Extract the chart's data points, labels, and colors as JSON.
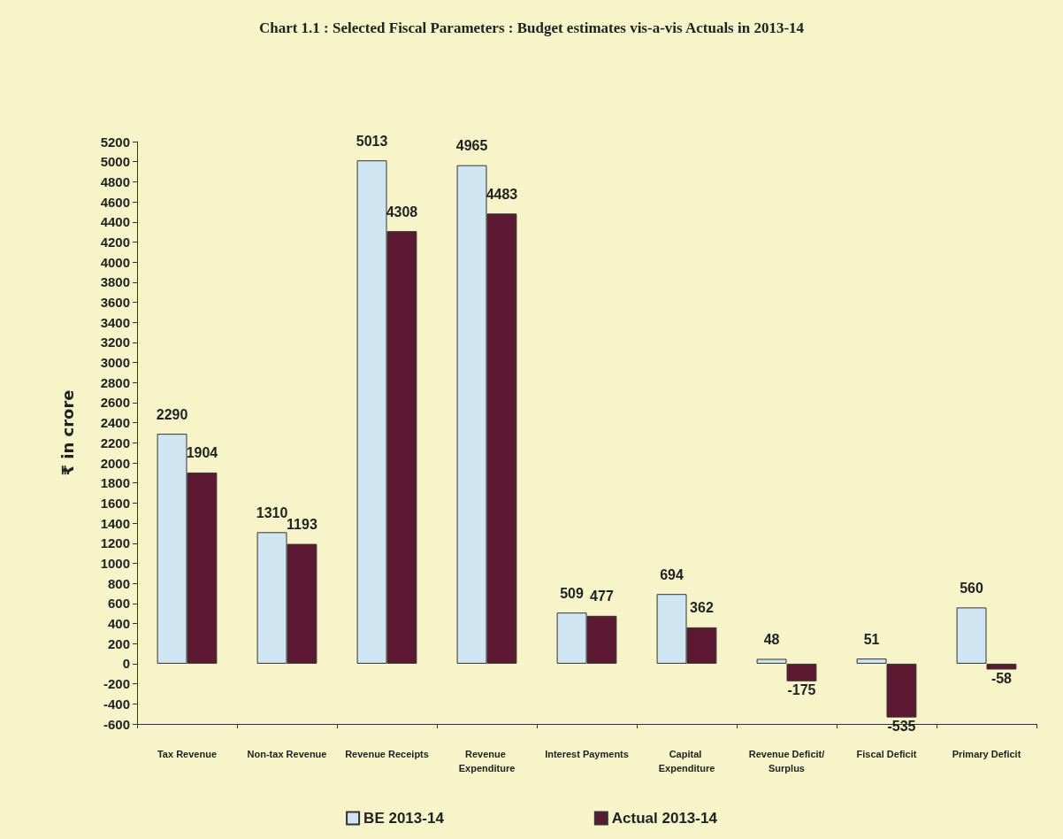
{
  "chart_data": {
    "type": "bar",
    "title": "Chart 1.1 : Selected Fiscal Parameters : Budget estimates vis-a-vis Actuals in 2013-14",
    "ylabel": "₹ in crore",
    "categories": [
      "Tax Revenue",
      "Non-tax Revenue",
      "Revenue Receipts",
      "Revenue Expenditure",
      "Interest Payments",
      "Capital Expenditure",
      "Revenue Deficit/Surplus",
      "Fiscal Deficit",
      "Primary Deficit"
    ],
    "series": [
      {
        "name": "BE 2013-14",
        "color": "#cfe6f2",
        "values": [
          2290,
          1310,
          5013,
          4965,
          509,
          694,
          48,
          51,
          560
        ]
      },
      {
        "name": "Actual 2013-14",
        "color": "#5c1a32",
        "values": [
          1904,
          1193,
          4308,
          4483,
          477,
          362,
          -175,
          -535,
          -58
        ]
      }
    ],
    "ylim": [
      -600,
      5200
    ],
    "yticks": [
      -600,
      -400,
      -200,
      0,
      200,
      400,
      600,
      800,
      1000,
      1200,
      1400,
      1600,
      1800,
      2000,
      2200,
      2400,
      2600,
      2800,
      3000,
      3200,
      3400,
      3600,
      3800,
      4000,
      4200,
      4400,
      4600,
      4800,
      5000,
      5200
    ],
    "data_labels": true,
    "grid": false,
    "legend": "bottom"
  }
}
